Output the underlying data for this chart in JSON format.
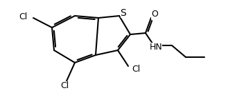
{
  "bg_color": "#ffffff",
  "line_color": "#000000",
  "line_width": 1.5,
  "font_size": 9,
  "atoms": {
    "S_label": "S",
    "O_label": "O",
    "N_label": "HN",
    "Cl1_label": "Cl",
    "Cl2_label": "Cl",
    "Cl3_label": "Cl"
  }
}
